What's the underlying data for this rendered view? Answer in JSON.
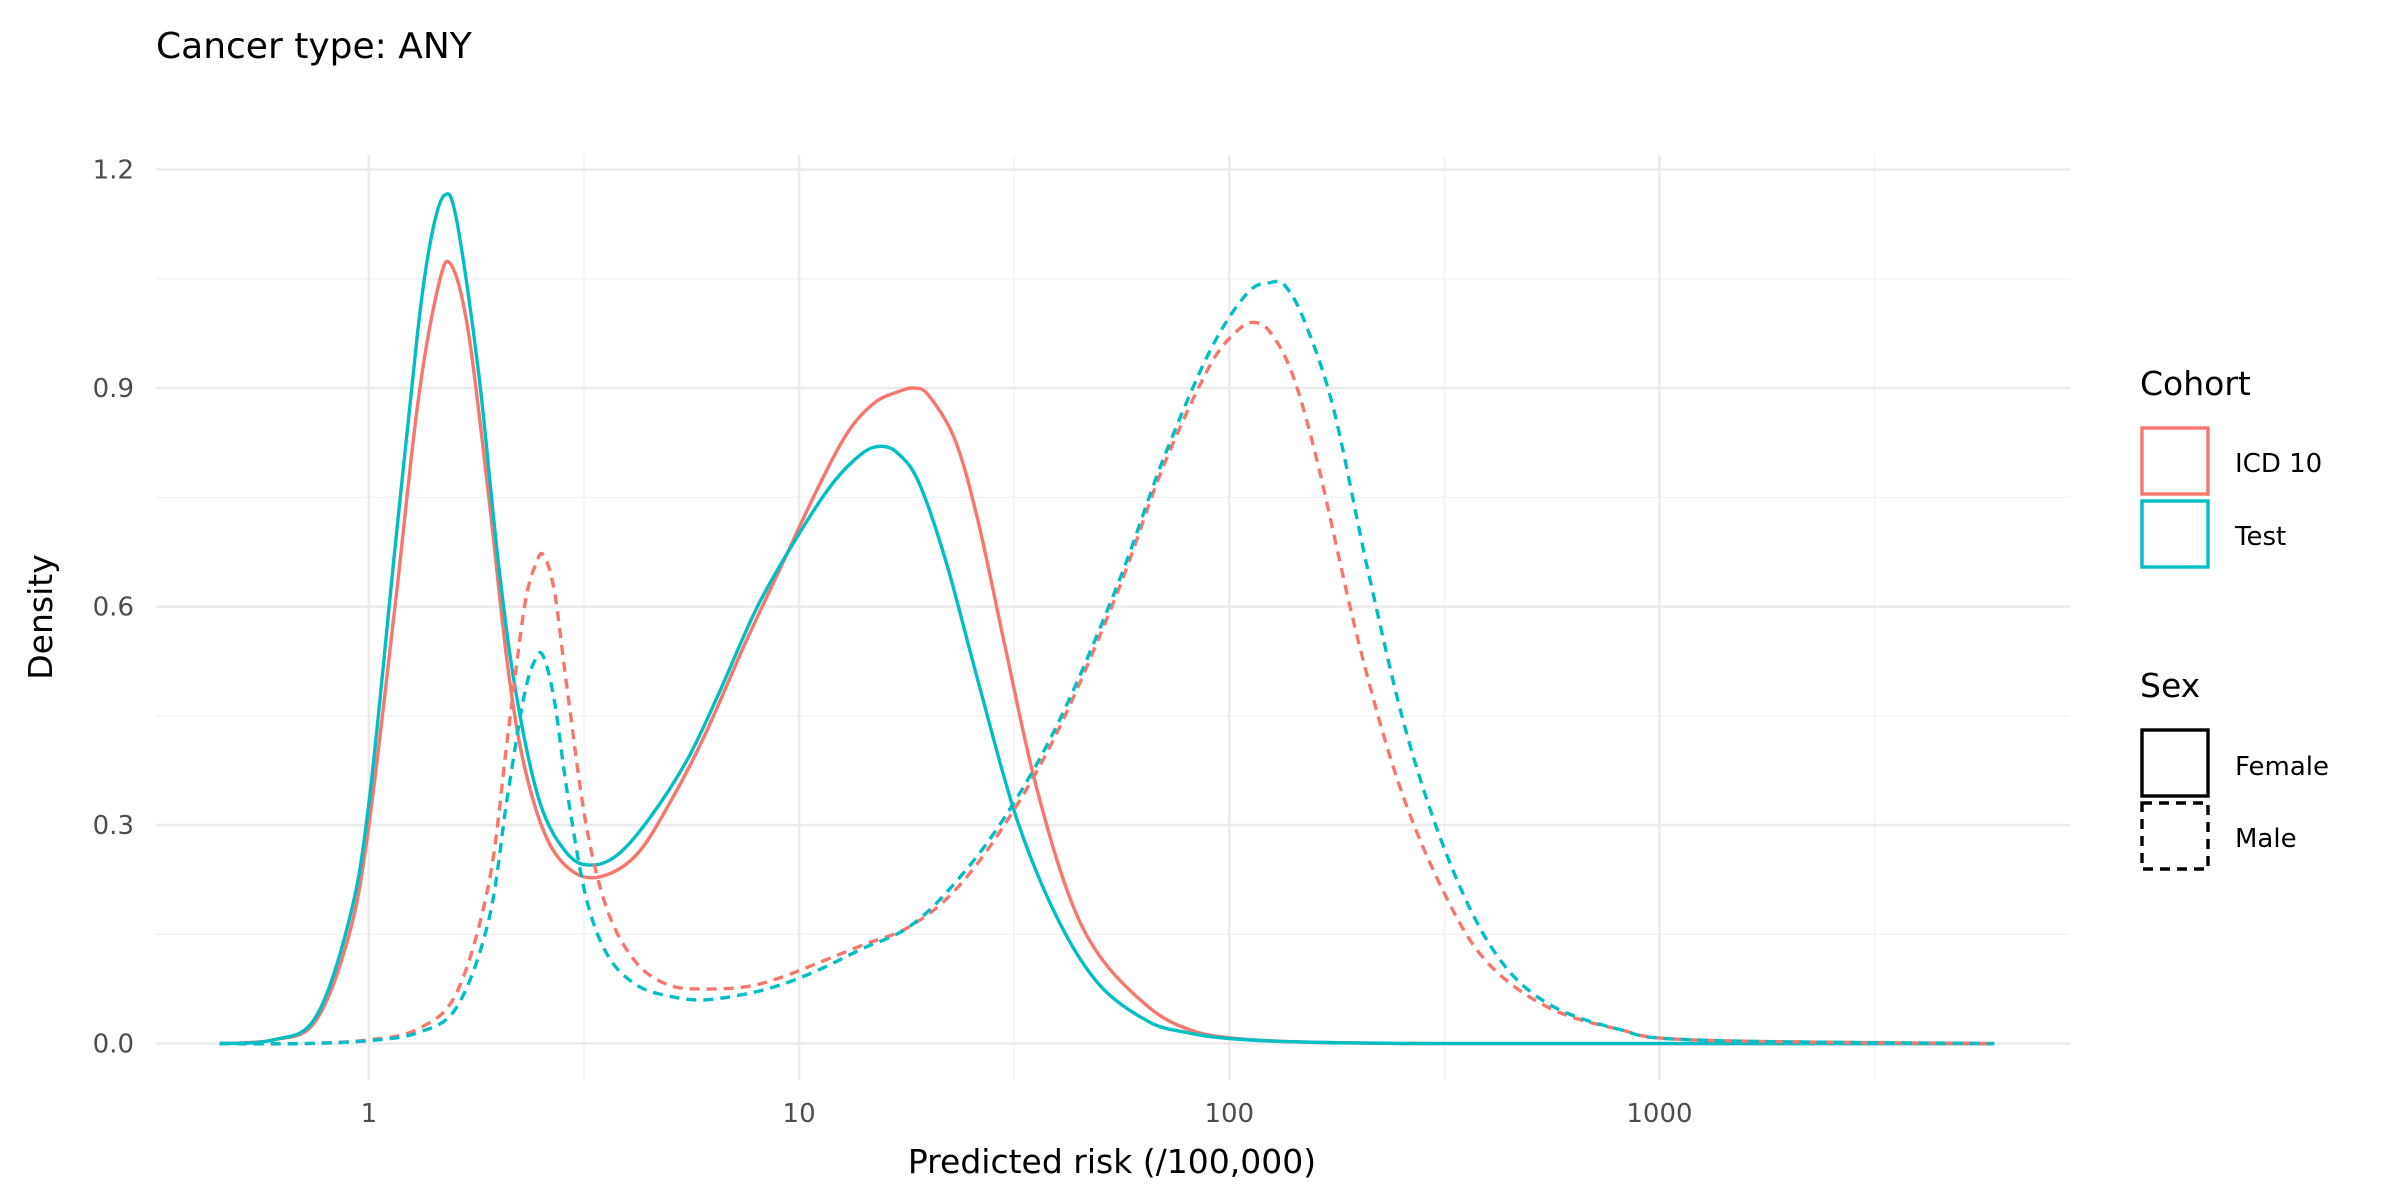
{
  "chart_data": {
    "type": "line",
    "title": "Cancer type: ANY",
    "subtitle": "",
    "xlabel": "Predicted risk (/100,000)",
    "ylabel": "Density",
    "x_scale": "log10",
    "xlim": [
      0.32,
      9000
    ],
    "ylim": [
      -0.05,
      1.22
    ],
    "x_ticks": [
      1,
      10,
      100,
      1000
    ],
    "x_tick_labels": [
      "1",
      "10",
      "100",
      "1000"
    ],
    "y_ticks": [
      0,
      0.3,
      0.6,
      0.9,
      1.2
    ],
    "y_tick_labels": [
      "0.0",
      "0.3",
      "0.6",
      "0.9",
      "1.2"
    ],
    "grid": true,
    "legend_position": "right",
    "legend": {
      "cohort_title": "Cohort",
      "cohort_items": [
        {
          "label": "ICD 10",
          "color": "#F8766D"
        },
        {
          "label": "Test",
          "color": "#00BFC4"
        }
      ],
      "sex_title": "Sex",
      "sex_items": [
        {
          "label": "Female",
          "linetype": "solid"
        },
        {
          "label": "Male",
          "linetype": "dashed"
        }
      ]
    },
    "series": [
      {
        "cohort": "ICD 10",
        "sex": "Female",
        "color": "#F8766D",
        "linetype": "solid",
        "x": [
          0.45,
          0.6,
          0.75,
          0.9,
          1.0,
          1.15,
          1.3,
          1.45,
          1.55,
          1.7,
          1.9,
          2.1,
          2.3,
          2.6,
          3.0,
          3.5,
          4.2,
          5.0,
          6.0,
          7.5,
          9.0,
          11.0,
          13.0,
          15.0,
          17.0,
          18.5,
          20.0,
          23.0,
          26.0,
          30.0,
          35.0,
          42.0,
          50.0,
          65.0,
          80.0,
          100.0,
          150.0,
          300.0,
          1000.0,
          6000.0
        ],
        "y": [
          0.0,
          0.005,
          0.03,
          0.15,
          0.3,
          0.6,
          0.88,
          1.04,
          1.07,
          0.98,
          0.75,
          0.52,
          0.38,
          0.28,
          0.235,
          0.23,
          0.26,
          0.33,
          0.42,
          0.55,
          0.65,
          0.76,
          0.84,
          0.88,
          0.895,
          0.9,
          0.89,
          0.83,
          0.72,
          0.55,
          0.37,
          0.21,
          0.12,
          0.05,
          0.02,
          0.008,
          0.002,
          0.0,
          0.0,
          0.0
        ]
      },
      {
        "cohort": "Test",
        "sex": "Female",
        "color": "#00BFC4",
        "linetype": "solid",
        "x": [
          0.45,
          0.6,
          0.75,
          0.9,
          1.0,
          1.15,
          1.3,
          1.4,
          1.5,
          1.6,
          1.8,
          2.0,
          2.2,
          2.5,
          2.9,
          3.3,
          3.8,
          4.5,
          5.5,
          6.5,
          8.0,
          10.0,
          12.0,
          14.0,
          15.5,
          17.0,
          19.0,
          22.0,
          26.0,
          32.0,
          40.0,
          50.0,
          65.0,
          80.0,
          100.0,
          150.0,
          300.0,
          1000.0,
          6000.0
        ],
        "y": [
          0.0,
          0.005,
          0.035,
          0.17,
          0.33,
          0.68,
          0.98,
          1.11,
          1.165,
          1.13,
          0.92,
          0.66,
          0.48,
          0.33,
          0.26,
          0.245,
          0.26,
          0.31,
          0.39,
          0.48,
          0.6,
          0.7,
          0.77,
          0.81,
          0.82,
          0.81,
          0.77,
          0.66,
          0.5,
          0.31,
          0.17,
          0.08,
          0.03,
          0.015,
          0.007,
          0.002,
          0.0,
          0.0,
          0.0
        ]
      },
      {
        "cohort": "ICD 10",
        "sex": "Male",
        "color": "#F8766D",
        "linetype": "dashed",
        "x": [
          0.45,
          0.7,
          1.0,
          1.3,
          1.6,
          1.9,
          2.1,
          2.3,
          2.45,
          2.55,
          2.7,
          2.9,
          3.2,
          3.6,
          4.2,
          5.0,
          6.0,
          7.5,
          9.0,
          11.0,
          14.0,
          18.0,
          23.0,
          30.0,
          40.0,
          55.0,
          70.0,
          90.0,
          105.0,
          115.0,
          125.0,
          140.0,
          160.0,
          200.0,
          250.0,
          320.0,
          400.0,
          550.0,
          800.0,
          1200.0,
          6000.0
        ],
        "y": [
          0.0,
          0.0,
          0.005,
          0.02,
          0.07,
          0.22,
          0.42,
          0.6,
          0.66,
          0.67,
          0.62,
          0.48,
          0.3,
          0.18,
          0.11,
          0.08,
          0.075,
          0.078,
          0.09,
          0.11,
          0.135,
          0.16,
          0.21,
          0.3,
          0.43,
          0.62,
          0.79,
          0.93,
          0.98,
          0.99,
          0.975,
          0.92,
          0.8,
          0.55,
          0.35,
          0.2,
          0.11,
          0.05,
          0.02,
          0.005,
          0.0
        ]
      },
      {
        "cohort": "Test",
        "sex": "Male",
        "color": "#00BFC4",
        "linetype": "dashed",
        "x": [
          0.45,
          0.7,
          1.0,
          1.3,
          1.6,
          1.9,
          2.1,
          2.3,
          2.45,
          2.55,
          2.7,
          2.9,
          3.2,
          3.6,
          4.2,
          5.0,
          6.0,
          7.5,
          9.0,
          11.0,
          14.0,
          18.0,
          23.0,
          30.0,
          40.0,
          55.0,
          70.0,
          90.0,
          110.0,
          125.0,
          135.0,
          150.0,
          175.0,
          210.0,
          260.0,
          330.0,
          420.0,
          550.0,
          800.0,
          1200.0,
          6000.0
        ],
        "y": [
          0.0,
          0.0,
          0.004,
          0.015,
          0.05,
          0.17,
          0.34,
          0.48,
          0.53,
          0.53,
          0.47,
          0.34,
          0.2,
          0.12,
          0.08,
          0.065,
          0.06,
          0.068,
          0.08,
          0.1,
          0.13,
          0.16,
          0.22,
          0.31,
          0.44,
          0.63,
          0.8,
          0.95,
          1.03,
          1.045,
          1.04,
          0.99,
          0.87,
          0.65,
          0.42,
          0.24,
          0.12,
          0.055,
          0.02,
          0.005,
          0.0
        ]
      }
    ]
  }
}
